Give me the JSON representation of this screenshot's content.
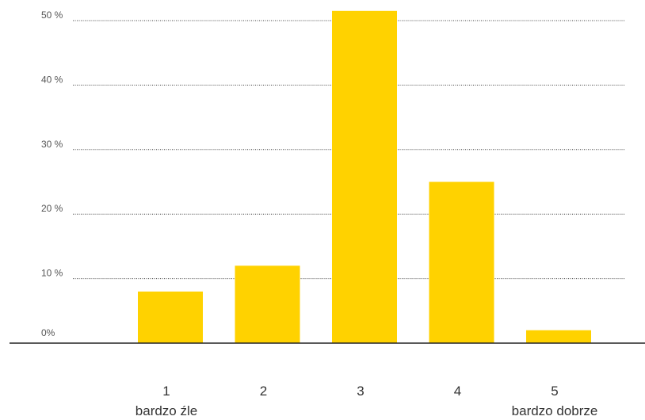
{
  "chart_data": {
    "type": "bar",
    "categories": [
      "1",
      "2",
      "3",
      "4",
      "5"
    ],
    "category_sublabels": [
      "bardzo źle",
      "",
      "",
      "",
      "bardzo dobrze"
    ],
    "values": [
      8,
      12,
      51.5,
      25,
      2
    ],
    "yticks": [
      0,
      10,
      20,
      30,
      40,
      50
    ],
    "ytick_labels": [
      "0%",
      "10 %",
      "20 %",
      "30 %",
      "40 %",
      "50 %"
    ],
    "ylim": [
      0,
      51.5
    ],
    "grid": true,
    "bar_color": "#ffd200",
    "title": "",
    "xlabel": "",
    "ylabel": ""
  }
}
